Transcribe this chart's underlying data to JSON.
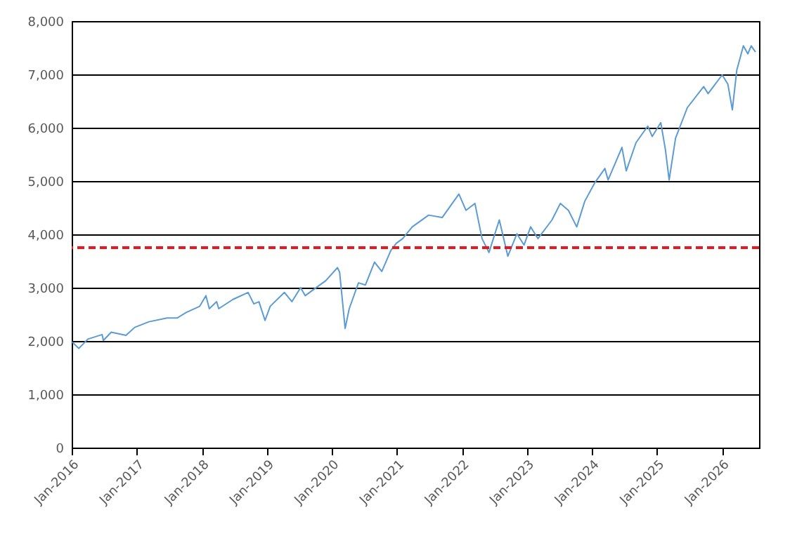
{
  "chart_data": {
    "type": "line",
    "x": [
      "2016-01-04",
      "2016-02-10",
      "2016-04-01",
      "2016-06-20",
      "2016-06-27",
      "2016-08-10",
      "2016-11-01",
      "2016-12-20",
      "2017-03-10",
      "2017-06-20",
      "2017-08-15",
      "2017-10-05",
      "2017-12-20",
      "2018-01-24",
      "2018-02-12",
      "2018-03-25",
      "2018-04-06",
      "2018-06-25",
      "2018-09-18",
      "2018-10-20",
      "2018-11-18",
      "2018-12-22",
      "2019-01-20",
      "2019-04-10",
      "2019-05-22",
      "2019-07-10",
      "2019-08-05",
      "2019-09-25",
      "2019-11-28",
      "2020-02-02",
      "2020-02-14",
      "2020-03-16",
      "2020-04-08",
      "2020-05-30",
      "2020-07-08",
      "2020-08-28",
      "2020-10-08",
      "2020-11-28",
      "2020-12-28",
      "2021-02-02",
      "2021-03-28",
      "2021-06-28",
      "2021-09-12",
      "2021-12-15",
      "2022-01-24",
      "2022-03-15",
      "2022-04-24",
      "2022-06-02",
      "2022-07-30",
      "2022-09-16",
      "2022-11-06",
      "2022-12-16",
      "2023-01-22",
      "2023-03-04",
      "2023-05-22",
      "2023-07-08",
      "2023-08-22",
      "2023-10-08",
      "2023-11-22",
      "2024-01-18",
      "2024-03-14",
      "2024-04-01",
      "2024-06-18",
      "2024-07-12",
      "2024-09-05",
      "2024-11-10",
      "2024-12-05",
      "2025-01-22",
      "2025-02-17",
      "2025-03-10",
      "2025-04-15",
      "2025-06-20",
      "2025-09-20",
      "2025-10-15",
      "2026-01-02",
      "2026-02-03",
      "2026-02-28",
      "2026-03-25",
      "2026-05-01",
      "2026-05-26",
      "2026-06-14",
      "2026-07-08"
    ],
    "series": [
      {
        "color": "#5b9bd5",
        "values": [
          1980,
          1860,
          2035,
          2120,
          2010,
          2165,
          2105,
          2255,
          2360,
          2430,
          2430,
          2535,
          2650,
          2850,
          2605,
          2737,
          2605,
          2780,
          2910,
          2695,
          2735,
          2385,
          2650,
          2910,
          2737,
          3000,
          2850,
          2975,
          3130,
          3375,
          3290,
          2235,
          2605,
          3090,
          3050,
          3480,
          3305,
          3700,
          3830,
          3920,
          4140,
          4360,
          4315,
          4755,
          4450,
          4580,
          3920,
          3660,
          4270,
          3590,
          4010,
          3800,
          4140,
          3920,
          4270,
          4580,
          4450,
          4140,
          4620,
          4970,
          5235,
          5020,
          5630,
          5190,
          5720,
          6030,
          5835,
          6095,
          5590,
          5020,
          5805,
          6375,
          6770,
          6640,
          6990,
          6815,
          6335,
          7080,
          7535,
          7385,
          7535,
          7420
        ]
      }
    ],
    "xlim": [
      "2016-01-01",
      "2026-07-28"
    ],
    "xticks": [
      {
        "value": "2016-01-01",
        "label": "Jan-2016"
      },
      {
        "value": "2017-01-01",
        "label": "Jan-2017"
      },
      {
        "value": "2018-01-01",
        "label": "Jan-2018"
      },
      {
        "value": "2019-01-01",
        "label": "Jan-2019"
      },
      {
        "value": "2020-01-01",
        "label": "Jan-2020"
      },
      {
        "value": "2021-01-01",
        "label": "Jan-2021"
      },
      {
        "value": "2022-01-01",
        "label": "Jan-2022"
      },
      {
        "value": "2023-01-01",
        "label": "Jan-2023"
      },
      {
        "value": "2024-01-01",
        "label": "Jan-2024"
      },
      {
        "value": "2025-01-01",
        "label": "Jan-2025"
      },
      {
        "value": "2026-01-01",
        "label": "Jan-2026"
      }
    ],
    "ylim": [
      0,
      8000
    ],
    "yticks": [
      0,
      {
        "value": 1000,
        "label": "1,000"
      },
      {
        "value": 2000,
        "label": "2,000"
      },
      {
        "value": 3000,
        "label": "3,000"
      },
      {
        "value": 4000,
        "label": "4,000"
      },
      {
        "value": 5000,
        "label": "5,000"
      },
      {
        "value": 6000,
        "label": "6,000"
      },
      {
        "value": 7000,
        "label": "7,000"
      },
      {
        "value": 8000,
        "label": "8,000"
      }
    ],
    "grid": "y",
    "ref_lines": [
      {
        "axis": "y",
        "value": 3750,
        "color": "#e41a1c",
        "line_style": "dashed"
      }
    ]
  }
}
